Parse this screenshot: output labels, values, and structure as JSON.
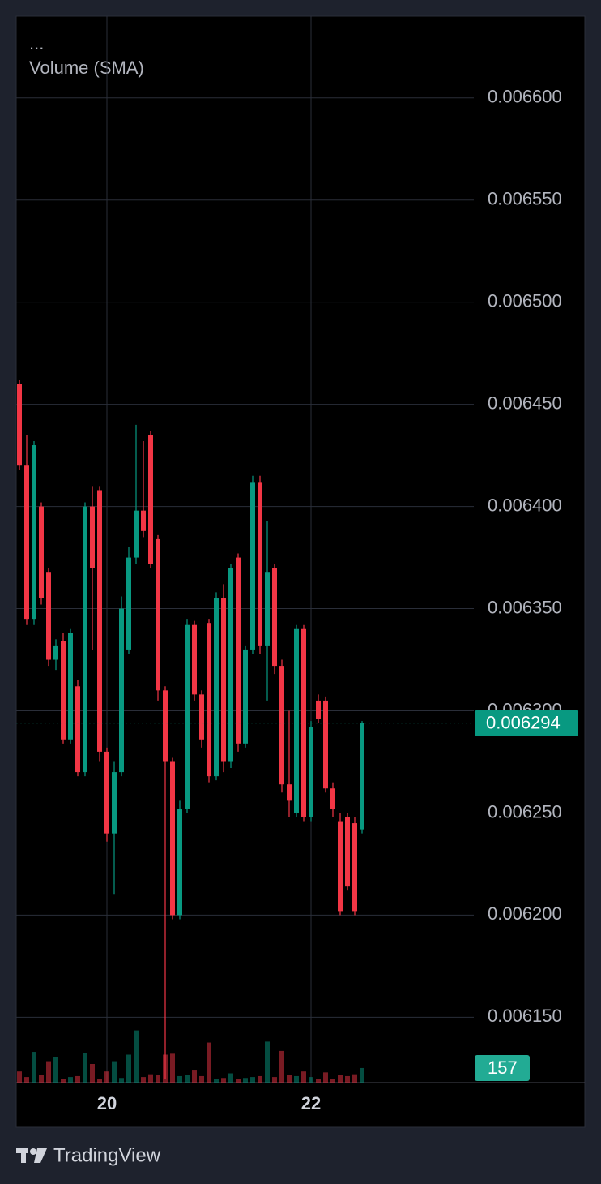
{
  "chart_data": {
    "type": "candlestick",
    "indicator_labels": [
      "...",
      "Volume (SMA)"
    ],
    "categories": [
      null,
      null,
      null,
      null,
      null,
      null,
      null,
      null,
      null,
      null,
      null,
      null,
      "20",
      null,
      null,
      null,
      null,
      null,
      null,
      null,
      null,
      null,
      null,
      null,
      null,
      null,
      null,
      null,
      null,
      null,
      null,
      null,
      null,
      null,
      null,
      null,
      null,
      null,
      null,
      null,
      "22",
      null,
      null,
      null,
      null,
      null,
      null,
      null
    ],
    "open": [
      0.00646,
      0.00642,
      0.006345,
      0.0064,
      0.006368,
      0.006325,
      0.006334,
      0.006286,
      0.006312,
      0.00627,
      0.0064,
      0.006408,
      0.00628,
      0.00624,
      0.00627,
      0.00633,
      0.006375,
      0.006398,
      0.006435,
      0.006384,
      0.00631,
      0.006275,
      0.0062,
      0.006252,
      0.006342,
      0.006308,
      0.006343,
      0.006268,
      0.006355,
      0.006275,
      0.006375,
      0.006284,
      0.00633,
      0.006412,
      0.006332,
      0.00637,
      0.006322,
      0.006264,
      0.00625,
      0.00634,
      0.006248,
      0.006305,
      0.006305,
      0.006262,
      0.006246,
      0.006248,
      0.006245,
      0.006242
    ],
    "high": [
      0.006462,
      0.006435,
      0.006432,
      0.006402,
      0.00637,
      0.006335,
      0.006338,
      0.00634,
      0.006315,
      0.006402,
      0.00641,
      0.00641,
      0.006282,
      0.006275,
      0.006356,
      0.00638,
      0.00644,
      0.006432,
      0.006437,
      0.006386,
      0.006312,
      0.006277,
      0.006256,
      0.006345,
      0.006344,
      0.00631,
      0.006345,
      0.006358,
      0.006362,
      0.006372,
      0.006377,
      0.006332,
      0.006415,
      0.006415,
      0.006393,
      0.006372,
      0.006325,
      0.0063,
      0.006342,
      0.006342,
      0.006295,
      0.006308,
      0.006307,
      0.006265,
      0.00625,
      0.00625,
      0.006248,
      0.006295
    ],
    "low": [
      0.006418,
      0.006342,
      0.006342,
      0.006352,
      0.006322,
      0.00632,
      0.006284,
      0.006284,
      0.006268,
      0.006268,
      0.00633,
      0.006275,
      0.006236,
      0.00621,
      0.006268,
      0.006328,
      0.006372,
      0.006385,
      0.00637,
      0.006305,
      0.00612,
      0.006198,
      0.006198,
      0.00625,
      0.006305,
      0.006282,
      0.006265,
      0.006266,
      0.00627,
      0.006272,
      0.00628,
      0.006282,
      0.006328,
      0.006328,
      0.006305,
      0.006318,
      0.00626,
      0.006248,
      0.006248,
      0.006246,
      0.006246,
      0.006294,
      0.00626,
      0.006248,
      0.0062,
      0.006212,
      0.0062,
      0.00624
    ],
    "close": [
      0.00642,
      0.006345,
      0.00643,
      0.006355,
      0.006325,
      0.006332,
      0.006286,
      0.006338,
      0.00627,
      0.0064,
      0.00637,
      0.00628,
      0.00624,
      0.00627,
      0.00635,
      0.006375,
      0.006398,
      0.006388,
      0.006372,
      0.00631,
      0.006275,
      0.0062,
      0.006252,
      0.006342,
      0.006308,
      0.006286,
      0.006268,
      0.006355,
      0.006275,
      0.00637,
      0.006284,
      0.00633,
      0.006412,
      0.006332,
      0.006368,
      0.006322,
      0.006264,
      0.006256,
      0.00634,
      0.006248,
      0.006292,
      0.006296,
      0.006262,
      0.006252,
      0.006202,
      0.006214,
      0.006202,
      0.006294
    ],
    "up_color": "#089981",
    "down_color": "#f23645",
    "ylim": [
      0.006118,
      0.00664
    ],
    "yticks": [
      {
        "value": 0.00615,
        "label": "0.006150"
      },
      {
        "value": 0.0062,
        "label": "0.006200"
      },
      {
        "value": 0.00625,
        "label": "0.006250"
      },
      {
        "value": 0.0063,
        "label": "0.006300"
      },
      {
        "value": 0.00635,
        "label": "0.006350"
      },
      {
        "value": 0.0064,
        "label": "0.006400"
      },
      {
        "value": 0.00645,
        "label": "0.006450"
      },
      {
        "value": 0.0065,
        "label": "0.006500"
      },
      {
        "value": 0.00655,
        "label": "0.006550"
      },
      {
        "value": 0.0066,
        "label": "0.006600"
      }
    ],
    "grid": true,
    "volume": {
      "name": "Volume (SMA)",
      "values": [
        120,
        60,
        330,
        80,
        230,
        270,
        40,
        60,
        70,
        320,
        200,
        40,
        120,
        230,
        50,
        300,
        560,
        60,
        90,
        80,
        300,
        310,
        70,
        80,
        130,
        70,
        430,
        40,
        50,
        100,
        40,
        50,
        60,
        70,
        440,
        60,
        340,
        80,
        70,
        120,
        60,
        40,
        110,
        40,
        80,
        70,
        90,
        157
      ],
      "ylim": [
        0,
        1000
      ]
    },
    "grid_color": "#2a2e39"
  },
  "footer": {
    "brand": "TradingView"
  }
}
